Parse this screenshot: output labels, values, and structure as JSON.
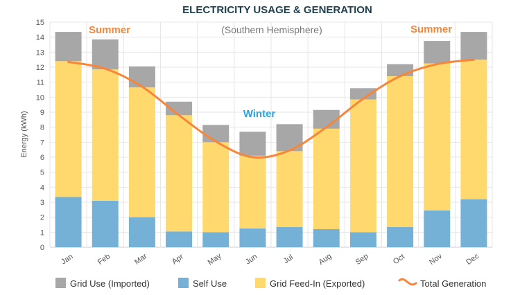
{
  "chart_data": {
    "type": "bar",
    "title": "ELECTRICITY USAGE & GENERATION",
    "ylabel": "Energy (kWh)",
    "xlabel": "",
    "ylim": [
      0,
      15
    ],
    "yticks": [
      "0",
      "1",
      "2",
      "3",
      "4",
      "5",
      "6",
      "7",
      "8",
      "9",
      "10",
      "11",
      "12",
      "13",
      "14",
      "15"
    ],
    "categories": [
      "Jan",
      "Feb",
      "Mar",
      "Apr",
      "May",
      "Jun",
      "Jul",
      "Aug",
      "Sep",
      "Oct",
      "Nov",
      "Dec"
    ],
    "series": [
      {
        "name": "Self Use",
        "color": "#75b1d6",
        "values": [
          3.35,
          3.1,
          2.0,
          1.05,
          1.0,
          1.25,
          1.35,
          1.2,
          1.0,
          1.35,
          2.45,
          3.2
        ]
      },
      {
        "name": "Grid Feed-In (Exported)",
        "color": "#ffd96e",
        "values": [
          9.05,
          8.75,
          8.65,
          7.75,
          6.0,
          4.85,
          5.05,
          6.7,
          8.85,
          10.05,
          9.8,
          9.3
        ]
      },
      {
        "name": "Grid Use (Imported)",
        "color": "#a7a7a7",
        "values": [
          1.95,
          2.0,
          1.4,
          0.9,
          1.15,
          1.6,
          1.8,
          1.25,
          0.75,
          0.8,
          1.5,
          1.85
        ]
      }
    ],
    "line": {
      "name": "Total Generation",
      "color": "#f7853a",
      "values": [
        12.35,
        11.9,
        10.7,
        8.8,
        7.05,
        6.0,
        6.45,
        8.0,
        9.9,
        11.4,
        12.2,
        12.5
      ]
    },
    "annotations": [
      {
        "text": "Summer",
        "color": "#f7853a"
      },
      {
        "text": "(Southern Hemisphere)",
        "color": "#777777"
      },
      {
        "text": "Winter",
        "color": "#2ba3e0"
      },
      {
        "text": "Summer",
        "color": "#f7853a"
      }
    ],
    "legend": {
      "position": "bottom",
      "items": [
        {
          "label": "Grid Use (Imported)",
          "color": "#a7a7a7",
          "kind": "swatch"
        },
        {
          "label": "Self Use",
          "color": "#75b1d6",
          "kind": "swatch"
        },
        {
          "label": "Grid Feed-In (Exported)",
          "color": "#ffd96e",
          "kind": "swatch"
        },
        {
          "label": "Total Generation",
          "color": "#f7853a",
          "kind": "line"
        }
      ]
    },
    "grid": true
  }
}
